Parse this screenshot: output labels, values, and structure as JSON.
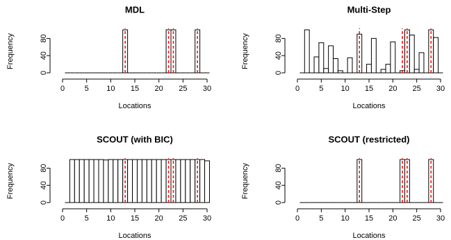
{
  "chart_data": [
    {
      "type": "bar",
      "title": "MDL",
      "xlabel": "Locations",
      "ylabel": "Frequency",
      "x": [
        1,
        2,
        3,
        4,
        5,
        6,
        7,
        8,
        9,
        10,
        11,
        12,
        13,
        14,
        15,
        16,
        17,
        18,
        19,
        20,
        21,
        22,
        23,
        24,
        25,
        26,
        27,
        28,
        29,
        30
      ],
      "values": [
        0,
        0,
        0,
        0,
        0,
        0,
        0,
        0,
        0,
        0,
        0,
        0,
        100,
        0,
        0,
        0,
        0,
        0,
        0,
        0,
        0,
        100,
        100,
        0,
        0,
        0,
        0,
        100,
        0,
        0
      ],
      "xlim": [
        0,
        30
      ],
      "xticks": [
        0,
        5,
        10,
        15,
        20,
        25,
        30
      ],
      "ylim": [
        0,
        100
      ],
      "yticks": [
        0,
        40,
        80
      ],
      "vlines": [
        13,
        22,
        23,
        28
      ],
      "color": "#ffffff",
      "edge_color": "#000000",
      "vline_color": "#ff0000"
    },
    {
      "type": "bar",
      "title": "Multi-Step",
      "xlabel": "Locations",
      "ylabel": "Frequency",
      "x": [
        1,
        2,
        3,
        4,
        5,
        6,
        7,
        8,
        9,
        10,
        11,
        12,
        13,
        14,
        15,
        16,
        17,
        18,
        19,
        20,
        21,
        22,
        23,
        24,
        25,
        26,
        27,
        28,
        29,
        30
      ],
      "values": [
        0,
        100,
        0,
        37,
        70,
        10,
        63,
        33,
        5,
        0,
        35,
        0,
        90,
        0,
        20,
        80,
        0,
        8,
        20,
        72,
        0,
        5,
        100,
        88,
        8,
        47,
        0,
        100,
        82,
        0
      ],
      "xlim": [
        0,
        30
      ],
      "xticks": [
        0,
        5,
        10,
        15,
        20,
        25,
        30
      ],
      "ylim": [
        0,
        100
      ],
      "yticks": [
        0,
        40,
        80
      ],
      "vlines": [
        13,
        22,
        23,
        28
      ],
      "color": "#ffffff",
      "edge_color": "#000000",
      "vline_color": "#ff0000"
    },
    {
      "type": "bar",
      "title": "SCOUT (with BIC)",
      "xlabel": "Locations",
      "ylabel": "Frequency",
      "x": [
        1,
        2,
        3,
        4,
        5,
        6,
        7,
        8,
        9,
        10,
        11,
        12,
        13,
        14,
        15,
        16,
        17,
        18,
        19,
        20,
        21,
        22,
        23,
        24,
        25,
        26,
        27,
        28,
        29,
        30
      ],
      "values": [
        0,
        100,
        100,
        100,
        100,
        100,
        100,
        100,
        99,
        100,
        100,
        100,
        100,
        100,
        100,
        100,
        100,
        100,
        100,
        100,
        100,
        100,
        100,
        100,
        100,
        100,
        100,
        100,
        100,
        97
      ],
      "xlim": [
        0,
        30
      ],
      "xticks": [
        0,
        5,
        10,
        15,
        20,
        25,
        30
      ],
      "ylim": [
        0,
        100
      ],
      "yticks": [
        0,
        40,
        80
      ],
      "vlines": [
        13,
        22,
        23,
        28
      ],
      "color": "#ffffff",
      "edge_color": "#000000",
      "vline_color": "#ff0000"
    },
    {
      "type": "bar",
      "title": "SCOUT (restricted)",
      "xlabel": "Locations",
      "ylabel": "Frequency",
      "x": [
        1,
        2,
        3,
        4,
        5,
        6,
        7,
        8,
        9,
        10,
        11,
        12,
        13,
        14,
        15,
        16,
        17,
        18,
        19,
        20,
        21,
        22,
        23,
        24,
        25,
        26,
        27,
        28,
        29,
        30
      ],
      "values": [
        0,
        0,
        0,
        0,
        0,
        0,
        0,
        0,
        0,
        0,
        0,
        0,
        100,
        0,
        0,
        0,
        0,
        0,
        0,
        0,
        0,
        100,
        100,
        0,
        0,
        0,
        0,
        100,
        0,
        0
      ],
      "xlim": [
        0,
        30
      ],
      "xticks": [
        0,
        5,
        10,
        15,
        20,
        25,
        30
      ],
      "ylim": [
        0,
        100
      ],
      "yticks": [
        0,
        40,
        80
      ],
      "vlines": [
        13,
        22,
        23,
        28
      ],
      "color": "#ffffff",
      "edge_color": "#000000",
      "vline_color": "#ff0000"
    }
  ]
}
